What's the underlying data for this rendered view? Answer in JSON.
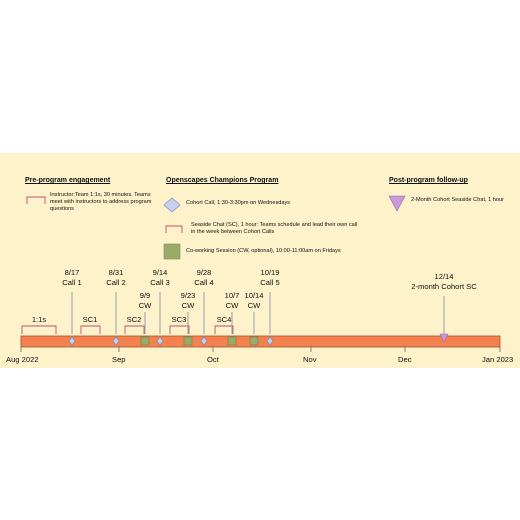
{
  "legend": {
    "pre": {
      "title": "Pre-program engagement",
      "text": "Instructor:Team 1:1s, 30 minutes. Teams meet with instructors to address program questions"
    },
    "champions": {
      "title": "Openscapes Champions Program",
      "cohort_call": "Cohort Call, 1:30-3:30pm on Wednesdays",
      "seaside_chat": "Seaside Chat (SC), 1 hour: Teams schedule and lead their own call in the week between Cohort Calls",
      "coworking": "Co-working Session (CW, optional), 10:00-11:00am on Fridays"
    },
    "post": {
      "title": "Post-program follow-up",
      "text": "2-Month Cohort Seaside Chat, 1 hour"
    }
  },
  "timeline": {
    "calls": [
      {
        "date": "8/17",
        "name": "Call 1"
      },
      {
        "date": "8/31",
        "name": "Call 2"
      },
      {
        "date": "9/14",
        "name": "Call 3"
      },
      {
        "date": "9/28",
        "name": "Call 4"
      },
      {
        "date": "10/19",
        "name": "Call 5"
      }
    ],
    "coworking": [
      {
        "date": "9/9",
        "name": "CW"
      },
      {
        "date": "9/23",
        "name": "CW"
      },
      {
        "date": "10/7",
        "name": "CW"
      },
      {
        "date": "10/14",
        "name": "CW"
      }
    ],
    "brackets": [
      "1:1s",
      "SC1",
      "SC2",
      "SC3",
      "SC4"
    ],
    "followup": {
      "date": "12/14",
      "name": "2-month Cohort SC"
    },
    "axis_labels": [
      "Aug 2022",
      "Sep",
      "Oct",
      "Nov",
      "Dec",
      "Jan 2023"
    ]
  },
  "colors": {
    "background": "#fdf2c9",
    "bar": "#f4824f",
    "diamond": "#c9d0f0",
    "coworking": "#9aab68",
    "followup": "#c89ad8",
    "bracket": "#c0506e"
  }
}
